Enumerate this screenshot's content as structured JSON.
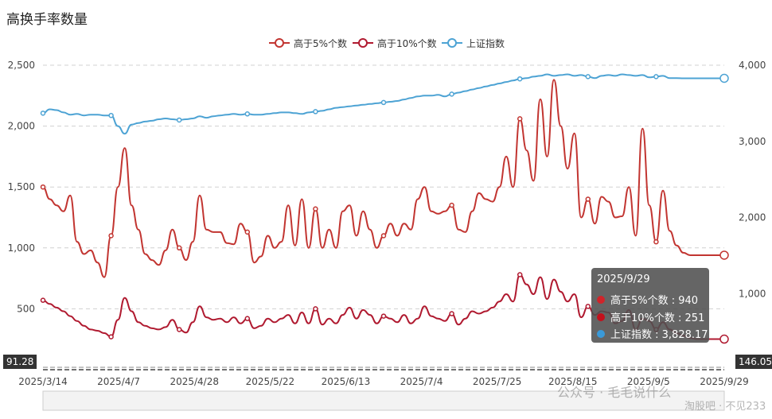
{
  "chart_data": {
    "type": "line",
    "title": "高换手率数量",
    "legend": [
      {
        "name": "高于5%个数",
        "color": "#c23531"
      },
      {
        "name": "高于10%个数",
        "color": "#b01a30"
      },
      {
        "name": "上证指数",
        "color": "#4da3d4"
      }
    ],
    "x_ticks": [
      "2025/3/14",
      "2025/4/7",
      "2025/4/28",
      "2025/5/22",
      "2025/6/13",
      "2025/7/4",
      "2025/7/25",
      "2025/8/15",
      "2025/9/5",
      "2025/9/29"
    ],
    "y_left": {
      "ticks": [
        "2,500",
        "2,000",
        "1,500",
        "1,000",
        "500"
      ],
      "ylim": [
        0,
        2500
      ]
    },
    "y_right": {
      "ticks": [
        "4,000",
        "3,000",
        "2,000",
        "1,000"
      ],
      "ylim": [
        0,
        4000
      ]
    },
    "series": [
      {
        "name": "高于5%个数",
        "axis": "left",
        "x": [
          0,
          2,
          4,
          6,
          8,
          10,
          12,
          14,
          16,
          18,
          20,
          22,
          24,
          26,
          28,
          30,
          32,
          34,
          36,
          38,
          40,
          42,
          44,
          46,
          48,
          50,
          52,
          54,
          56,
          58,
          60,
          62,
          64,
          66,
          68,
          70,
          72,
          74,
          76,
          78,
          80,
          82,
          84,
          86,
          88,
          90,
          92,
          94,
          96,
          98,
          100,
          102,
          104,
          106,
          108,
          110,
          112,
          114,
          116,
          118,
          120,
          122,
          124,
          126,
          128,
          130,
          132,
          134,
          136,
          138,
          140,
          142,
          144,
          146,
          148,
          150,
          152,
          154,
          156,
          158,
          160,
          162,
          164,
          166,
          168,
          170,
          172,
          174,
          176,
          178,
          180,
          182,
          184,
          186,
          188,
          190,
          192,
          194,
          196,
          198,
          200
        ],
        "values": [
          1500,
          1400,
          1350,
          1300,
          1430,
          1050,
          950,
          980,
          880,
          760,
          1100,
          1500,
          1820,
          1350,
          1150,
          950,
          900,
          860,
          980,
          1150,
          1000,
          900,
          1050,
          1430,
          1150,
          1130,
          1130,
          1040,
          1030,
          1200,
          1130,
          880,
          930,
          1100,
          1000,
          1050,
          1350,
          1020,
          1400,
          1000,
          1320,
          1000,
          1150,
          1000,
          1300,
          1350,
          1100,
          1300,
          1150,
          1000,
          1100,
          1200,
          1100,
          1200,
          1150,
          1400,
          1500,
          1300,
          1280,
          1300,
          1350,
          1150,
          1130,
          1300,
          1450,
          1400,
          1380,
          1500,
          1750,
          1500,
          2060,
          1800,
          1550,
          2220,
          1750,
          2380,
          2000,
          1650,
          1940,
          1250,
          1400,
          1200,
          1420,
          1380,
          1250,
          1260,
          1500,
          1100,
          1980,
          1350,
          1050,
          1470,
          1140,
          1020,
          960,
          940,
          940,
          940,
          940,
          940,
          940
        ]
      },
      {
        "name": "高于10%个数",
        "axis": "left",
        "x": [
          0,
          2,
          4,
          6,
          8,
          10,
          12,
          14,
          16,
          18,
          20,
          22,
          24,
          26,
          28,
          30,
          32,
          34,
          36,
          38,
          40,
          42,
          44,
          46,
          48,
          50,
          52,
          54,
          56,
          58,
          60,
          62,
          64,
          66,
          68,
          70,
          72,
          74,
          76,
          78,
          80,
          82,
          84,
          86,
          88,
          90,
          92,
          94,
          96,
          98,
          100,
          102,
          104,
          106,
          108,
          110,
          112,
          114,
          116,
          118,
          120,
          122,
          124,
          126,
          128,
          130,
          132,
          134,
          136,
          138,
          140,
          142,
          144,
          146,
          148,
          150,
          152,
          154,
          156,
          158,
          160,
          162,
          164,
          166,
          168,
          170,
          172,
          174,
          176,
          178,
          180,
          182,
          184,
          186,
          188,
          190,
          192,
          194,
          196,
          198,
          200
        ],
        "values": [
          570,
          540,
          510,
          480,
          440,
          400,
          360,
          330,
          320,
          300,
          270,
          410,
          590,
          480,
          390,
          360,
          340,
          330,
          350,
          410,
          330,
          305,
          390,
          520,
          430,
          410,
          420,
          390,
          430,
          380,
          420,
          340,
          360,
          420,
          390,
          420,
          450,
          380,
          470,
          380,
          500,
          370,
          420,
          380,
          450,
          510,
          420,
          490,
          450,
          380,
          440,
          420,
          390,
          450,
          380,
          420,
          520,
          440,
          420,
          400,
          460,
          370,
          420,
          480,
          460,
          480,
          510,
          560,
          620,
          560,
          780,
          700,
          620,
          760,
          580,
          740,
          640,
          560,
          620,
          430,
          520,
          450,
          480,
          470,
          380,
          400,
          490,
          330,
          420,
          400,
          330,
          390,
          330,
          300,
          280,
          260,
          251,
          251,
          251,
          251,
          251
        ]
      },
      {
        "name": "上证指数",
        "axis": "right",
        "x": [
          0,
          2,
          4,
          6,
          8,
          10,
          12,
          14,
          16,
          18,
          20,
          22,
          24,
          26,
          28,
          30,
          32,
          34,
          36,
          38,
          40,
          42,
          44,
          46,
          48,
          50,
          52,
          54,
          56,
          58,
          60,
          62,
          64,
          66,
          68,
          70,
          72,
          74,
          76,
          78,
          80,
          82,
          84,
          86,
          88,
          90,
          92,
          94,
          96,
          98,
          100,
          102,
          104,
          106,
          108,
          110,
          112,
          114,
          116,
          118,
          120,
          122,
          124,
          126,
          128,
          130,
          132,
          134,
          136,
          138,
          140,
          142,
          144,
          146,
          148,
          150,
          152,
          154,
          156,
          158,
          160,
          162,
          164,
          166,
          168,
          170,
          172,
          174,
          176,
          178,
          180,
          182,
          184,
          186,
          188,
          190,
          192,
          194,
          196,
          198,
          200
        ],
        "values": [
          3370,
          3420,
          3410,
          3380,
          3350,
          3360,
          3340,
          3350,
          3350,
          3340,
          3340,
          3200,
          3100,
          3220,
          3240,
          3260,
          3270,
          3290,
          3300,
          3290,
          3280,
          3290,
          3300,
          3330,
          3310,
          3330,
          3340,
          3350,
          3360,
          3350,
          3360,
          3350,
          3350,
          3360,
          3370,
          3380,
          3380,
          3370,
          3360,
          3380,
          3390,
          3400,
          3420,
          3440,
          3450,
          3460,
          3470,
          3480,
          3490,
          3500,
          3510,
          3520,
          3530,
          3550,
          3570,
          3590,
          3600,
          3600,
          3610,
          3590,
          3620,
          3640,
          3660,
          3680,
          3700,
          3720,
          3740,
          3760,
          3780,
          3800,
          3820,
          3830,
          3850,
          3860,
          3880,
          3860,
          3870,
          3880,
          3860,
          3870,
          3850,
          3830,
          3860,
          3870,
          3860,
          3880,
          3870,
          3860,
          3870,
          3840,
          3850,
          3860,
          3830,
          3830,
          3828.17,
          3828.17,
          3828.17,
          3828.17,
          3828.17,
          3828.17,
          3828.17
        ]
      }
    ],
    "tooltip": {
      "date": "2025/9/29",
      "rows": [
        {
          "label": "高于5%个数 : 940",
          "color": "#d0242a"
        },
        {
          "label": "高于10%个数 : 251",
          "color": "#c4101c"
        },
        {
          "label": "上证指数 : 3,828.17",
          "color": "#3a9ad9"
        }
      ]
    },
    "edge_labels": {
      "left": "91.28",
      "right": "146.05"
    }
  },
  "watermark": {
    "line1": "公众号 · 毛毛说什么",
    "line2": "淘股吧 · 不见233"
  }
}
